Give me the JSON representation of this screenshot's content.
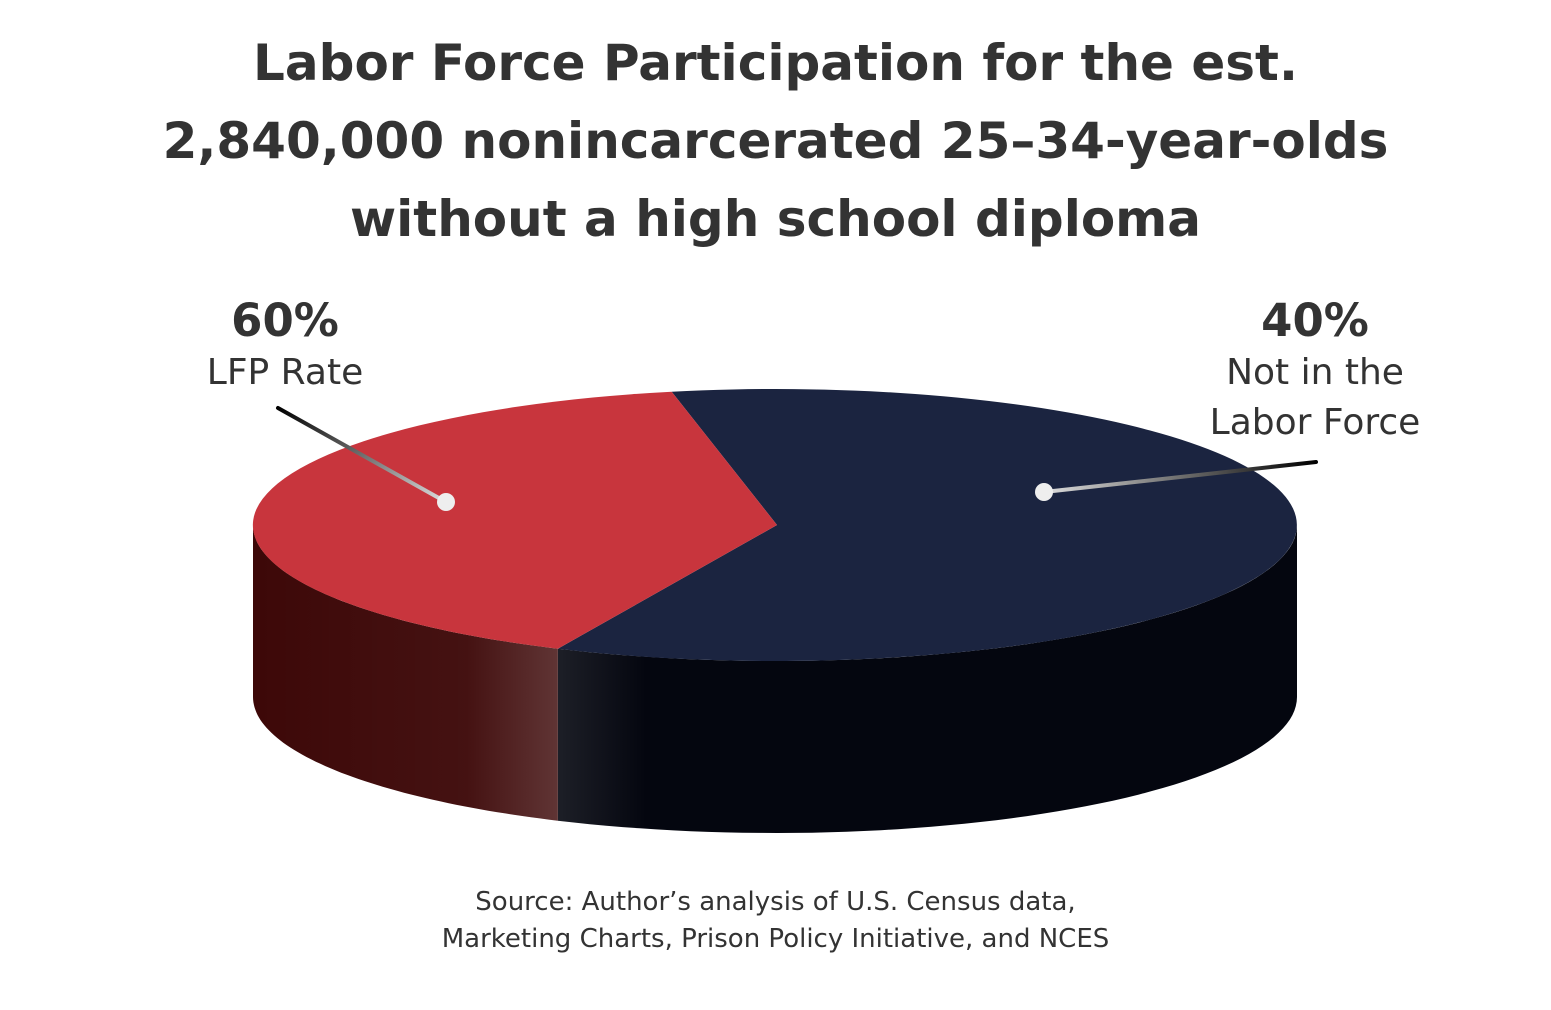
{
  "chart_data": {
    "type": "pie",
    "title_lines": [
      "Labor Force Participation for the est.",
      "2,840,000 nonincarcerated 25–34-year-olds",
      "without a high school diploma"
    ],
    "slices": [
      {
        "value": 60,
        "percent_label": "60%",
        "name_lines": [
          "LFP Rate"
        ],
        "color": "#1b2440",
        "side_color": "#04060f"
      },
      {
        "value": 40,
        "percent_label": "40%",
        "name_lines": [
          "Not in the",
          "Labor Force"
        ],
        "color": "#c8353d",
        "side_color": "#3d0808"
      }
    ],
    "source_lines": [
      "Source: Author’s analysis of U.S. Census data,",
      "Marketing Charts, Prison Policy Initiative, and NCES"
    ]
  }
}
